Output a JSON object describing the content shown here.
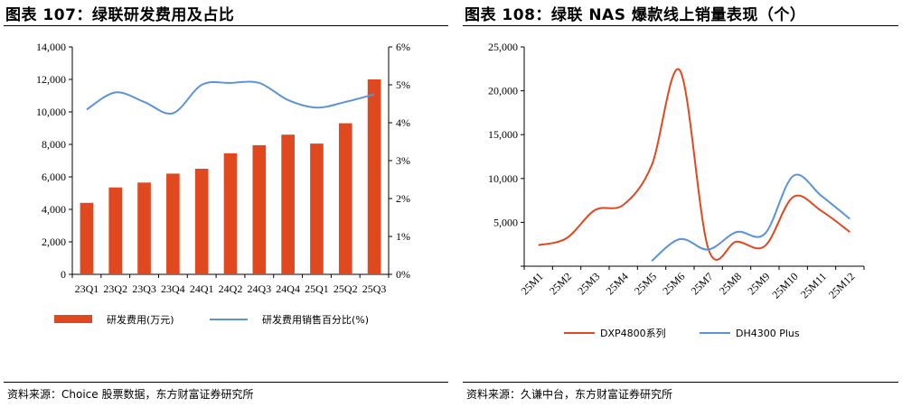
{
  "left_chart": {
    "title": "图表 107：绿联研发费用及占比",
    "source": "资料来源：Choice 股票数据，东方财富证券研究所",
    "colors": {
      "bar": "#e0481f",
      "line": "#5b93d6"
    },
    "chart_data": {
      "type": "bar",
      "categories": [
        "23Q1",
        "23Q2",
        "23Q3",
        "23Q4",
        "24Q1",
        "24Q2",
        "24Q3",
        "24Q4",
        "25Q1",
        "25Q2",
        "25Q3"
      ],
      "series": [
        {
          "name": "研发费用(万元)",
          "type": "bar",
          "axis": "left",
          "values": [
            4400,
            5350,
            5650,
            6200,
            6500,
            7450,
            7950,
            8600,
            8050,
            9300,
            12000
          ]
        },
        {
          "name": "研发费用销售百分比(%)",
          "type": "line",
          "axis": "right",
          "values": [
            4.35,
            4.8,
            4.55,
            4.25,
            5.0,
            5.05,
            5.05,
            4.6,
            4.4,
            4.55,
            4.75
          ]
        }
      ],
      "ylim": [
        0,
        14000
      ],
      "y_ticks": [
        "0",
        "2,000",
        "4,000",
        "6,000",
        "8,000",
        "10,000",
        "12,000",
        "14,000"
      ],
      "y2lim": [
        0,
        6
      ],
      "y2_ticks": [
        "0%",
        "1%",
        "2%",
        "3%",
        "4%",
        "5%",
        "6%"
      ],
      "legend_position": "bottom",
      "grid": false
    }
  },
  "right_chart": {
    "title": "图表 108：绿联 NAS 爆款线上销量表现（个）",
    "source": "资料来源：久谦中台，东方财富证券研究所",
    "colors": {
      "series1": "#e0481f",
      "series2": "#5b93d6"
    },
    "chart_data": {
      "type": "line",
      "categories": [
        "25M1",
        "25M2",
        "25M3",
        "25M4",
        "25M5",
        "25M6",
        "25M7",
        "25M8",
        "25M9",
        "25M10",
        "25M11",
        "25M12"
      ],
      "series": [
        {
          "name": "DXP4800系列",
          "values": [
            2400,
            3200,
            6400,
            7000,
            11500,
            22300,
            2000,
            2800,
            2300,
            7900,
            6300,
            3900
          ]
        },
        {
          "name": "DH4300 Plus",
          "values": [
            null,
            null,
            null,
            null,
            600,
            3100,
            1900,
            3900,
            3700,
            10300,
            8000,
            5400
          ]
        }
      ],
      "ylim": [
        0,
        25000
      ],
      "y_ticks": [
        "",
        "5,000",
        "10,000",
        "15,000",
        "20,000",
        "25,000"
      ],
      "legend_position": "bottom",
      "grid": false
    }
  }
}
